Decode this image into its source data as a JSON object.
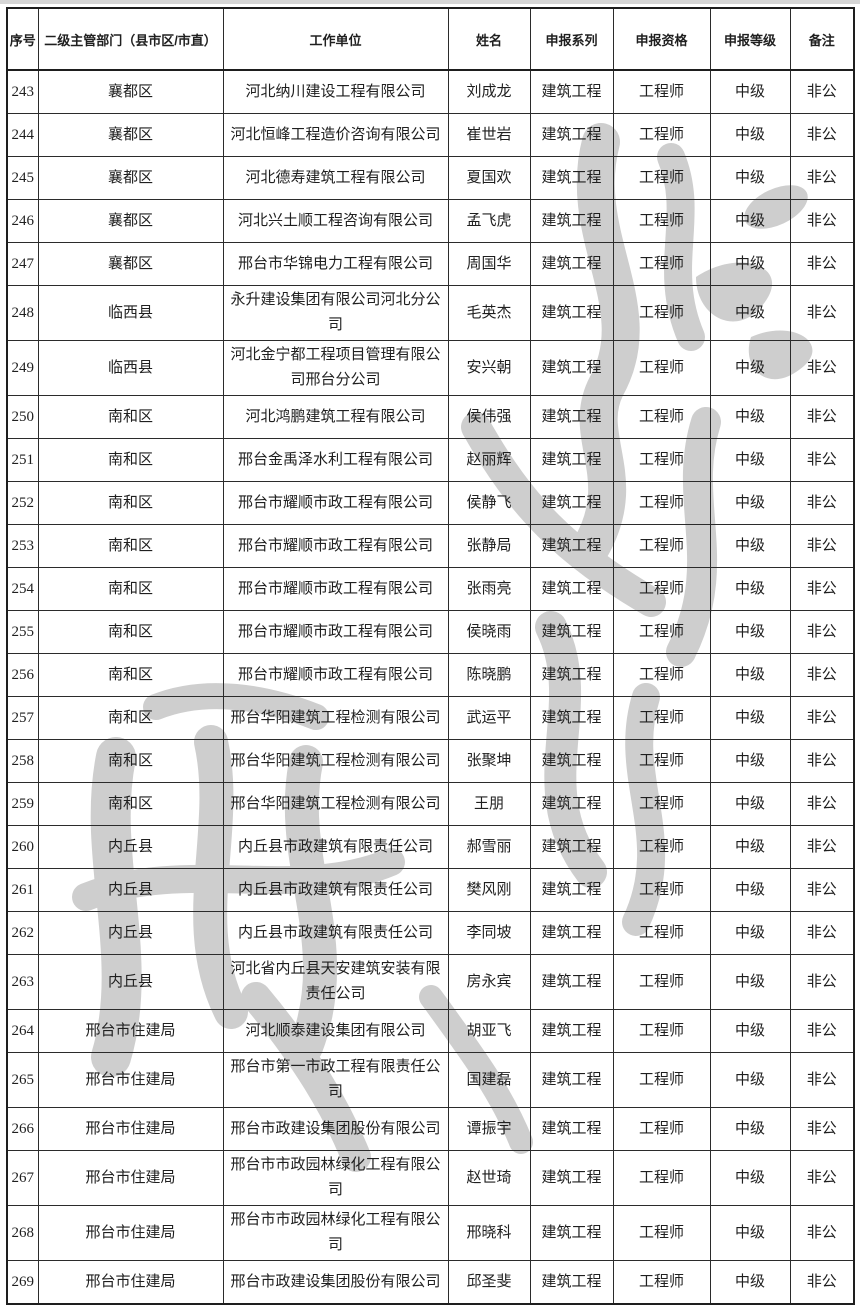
{
  "page": {
    "background_color": "#ffffff",
    "top_edge_color": "#d6d6d6",
    "watermark_color": "#c6c6c6",
    "border_color": "#2b2b2b",
    "text_color": "#1f1f1f"
  },
  "table": {
    "headers": [
      "序号",
      "二级主管部门（县市区/市直）",
      "工作单位",
      "姓名",
      "申报系列",
      "申报资格",
      "申报等级",
      "备注"
    ],
    "column_names": [
      "cell-serial",
      "cell-department",
      "cell-work-unit",
      "cell-name",
      "cell-series",
      "cell-qualification",
      "cell-level",
      "cell-remark"
    ],
    "rows": [
      [
        "243",
        "襄都区",
        "河北纳川建设工程有限公司",
        "刘成龙",
        "建筑工程",
        "工程师",
        "中级",
        "非公"
      ],
      [
        "244",
        "襄都区",
        "河北恒峰工程造价咨询有限公司",
        "崔世岩",
        "建筑工程",
        "工程师",
        "中级",
        "非公"
      ],
      [
        "245",
        "襄都区",
        "河北德寿建筑工程有限公司",
        "夏国欢",
        "建筑工程",
        "工程师",
        "中级",
        "非公"
      ],
      [
        "246",
        "襄都区",
        "河北兴土顺工程咨询有限公司",
        "孟飞虎",
        "建筑工程",
        "工程师",
        "中级",
        "非公"
      ],
      [
        "247",
        "襄都区",
        "邢台市华锦电力工程有限公司",
        "周国华",
        "建筑工程",
        "工程师",
        "中级",
        "非公"
      ],
      [
        "248",
        "临西县",
        "永升建设集团有限公司河北分公司",
        "毛英杰",
        "建筑工程",
        "工程师",
        "中级",
        "非公"
      ],
      [
        "249",
        "临西县",
        "河北金宁都工程项目管理有限公司邢台分公司",
        "安兴朝",
        "建筑工程",
        "工程师",
        "中级",
        "非公"
      ],
      [
        "250",
        "南和区",
        "河北鸿鹏建筑工程有限公司",
        "侯伟强",
        "建筑工程",
        "工程师",
        "中级",
        "非公"
      ],
      [
        "251",
        "南和区",
        "邢台金禹泽水利工程有限公司",
        "赵丽辉",
        "建筑工程",
        "工程师",
        "中级",
        "非公"
      ],
      [
        "252",
        "南和区",
        "邢台市耀顺市政工程有限公司",
        "侯静飞",
        "建筑工程",
        "工程师",
        "中级",
        "非公"
      ],
      [
        "253",
        "南和区",
        "邢台市耀顺市政工程有限公司",
        "张静局",
        "建筑工程",
        "工程师",
        "中级",
        "非公"
      ],
      [
        "254",
        "南和区",
        "邢台市耀顺市政工程有限公司",
        "张雨亮",
        "建筑工程",
        "工程师",
        "中级",
        "非公"
      ],
      [
        "255",
        "南和区",
        "邢台市耀顺市政工程有限公司",
        "侯晓雨",
        "建筑工程",
        "工程师",
        "中级",
        "非公"
      ],
      [
        "256",
        "南和区",
        "邢台市耀顺市政工程有限公司",
        "陈晓鹏",
        "建筑工程",
        "工程师",
        "中级",
        "非公"
      ],
      [
        "257",
        "南和区",
        "邢台华阳建筑工程检测有限公司",
        "武运平",
        "建筑工程",
        "工程师",
        "中级",
        "非公"
      ],
      [
        "258",
        "南和区",
        "邢台华阳建筑工程检测有限公司",
        "张聚坤",
        "建筑工程",
        "工程师",
        "中级",
        "非公"
      ],
      [
        "259",
        "南和区",
        "邢台华阳建筑工程检测有限公司",
        "王朋",
        "建筑工程",
        "工程师",
        "中级",
        "非公"
      ],
      [
        "260",
        "内丘县",
        "内丘县市政建筑有限责任公司",
        "郝雪丽",
        "建筑工程",
        "工程师",
        "中级",
        "非公"
      ],
      [
        "261",
        "内丘县",
        "内丘县市政建筑有限责任公司",
        "樊风刚",
        "建筑工程",
        "工程师",
        "中级",
        "非公"
      ],
      [
        "262",
        "内丘县",
        "内丘县市政建筑有限责任公司",
        "李同坡",
        "建筑工程",
        "工程师",
        "中级",
        "非公"
      ],
      [
        "263",
        "内丘县",
        "河北省内丘县天安建筑安装有限责任公司",
        "房永宾",
        "建筑工程",
        "工程师",
        "中级",
        "非公"
      ],
      [
        "264",
        "邢台市住建局",
        "河北顺泰建设集团有限公司",
        "胡亚飞",
        "建筑工程",
        "工程师",
        "中级",
        "非公"
      ],
      [
        "265",
        "邢台市住建局",
        "邢台市第一市政工程有限责任公司",
        "国建磊",
        "建筑工程",
        "工程师",
        "中级",
        "非公"
      ],
      [
        "266",
        "邢台市住建局",
        "邢台市政建设集团股份有限公司",
        "谭振宇",
        "建筑工程",
        "工程师",
        "中级",
        "非公"
      ],
      [
        "267",
        "邢台市住建局",
        "邢台市市政园林绿化工程有限公司",
        "赵世琦",
        "建筑工程",
        "工程师",
        "中级",
        "非公"
      ],
      [
        "268",
        "邢台市住建局",
        "邢台市市政园林绿化工程有限公司",
        "邢晓科",
        "建筑工程",
        "工程师",
        "中级",
        "非公"
      ],
      [
        "269",
        "邢台市住建局",
        "邢台市政建设集团股份有限公司",
        "邱圣斐",
        "建筑工程",
        "工程师",
        "中级",
        "非公"
      ]
    ]
  }
}
